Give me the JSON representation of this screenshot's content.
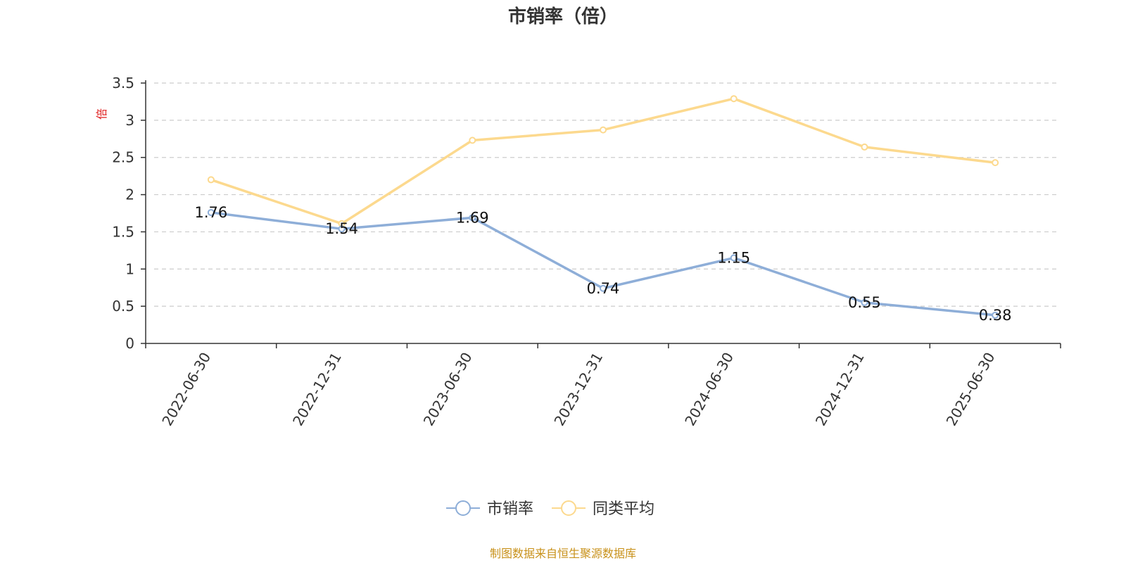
{
  "chart_data": {
    "type": "line",
    "title": "市销率（倍）",
    "ylabel": "倍",
    "ylim": [
      0,
      3.5
    ],
    "yticks": [
      "0",
      "0.5",
      "1",
      "1.5",
      "2",
      "2.5",
      "3",
      "3.5"
    ],
    "ytick_values": [
      0,
      0.5,
      1,
      1.5,
      2,
      2.5,
      3,
      3.5
    ],
    "categories": [
      "2022-06-30",
      "2022-12-31",
      "2023-06-30",
      "2023-12-31",
      "2024-06-30",
      "2024-12-31",
      "2025-06-30"
    ],
    "series": [
      {
        "name": "市销率",
        "color": "#8eaed8",
        "values": [
          1.76,
          1.54,
          1.69,
          0.74,
          1.15,
          0.55,
          0.38
        ],
        "labels": [
          "1.76",
          "1.54",
          "1.69",
          "0.74",
          "1.15",
          "0.55",
          "0.38"
        ]
      },
      {
        "name": "同类平均",
        "color": "#fcd98e",
        "values": [
          2.2,
          1.61,
          2.73,
          2.87,
          3.29,
          2.64,
          2.43
        ]
      }
    ],
    "grid": true,
    "grid_style": "dashed-horizontal",
    "legend_position": "bottom-center",
    "unit_color": "#e02020"
  },
  "footer": {
    "source": "制图数据来自恒生聚源数据库",
    "source_color": "#c8911a"
  }
}
